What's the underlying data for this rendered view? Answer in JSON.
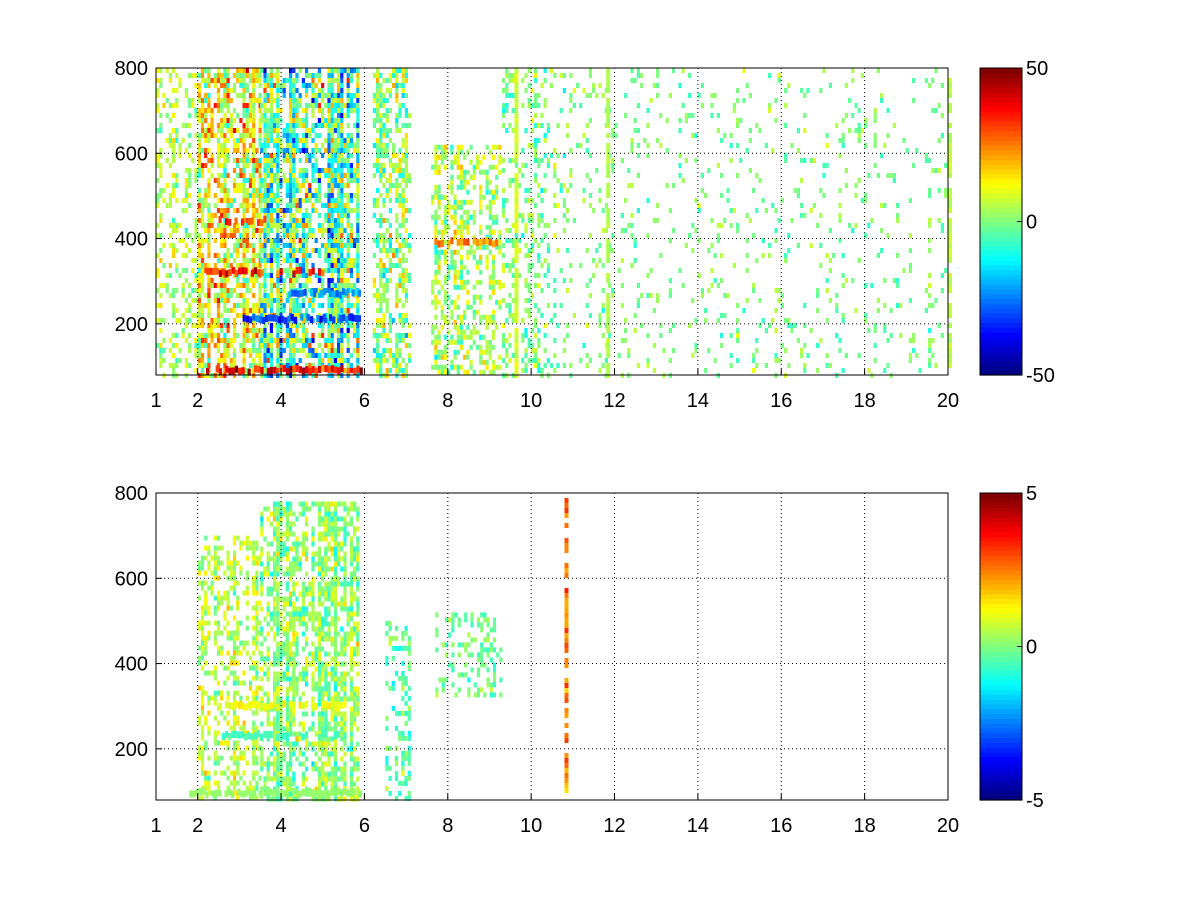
{
  "chart_data": [
    {
      "type": "heatmap",
      "panel": "top",
      "x_ticks": [
        "1",
        "2",
        "4",
        "6",
        "8",
        "10",
        "12",
        "14",
        "16",
        "18",
        "20"
      ],
      "x_tick_values": [
        1,
        2,
        4,
        6,
        8,
        10,
        12,
        14,
        16,
        18,
        20
      ],
      "y_ticks": [
        "200",
        "400",
        "600",
        "800"
      ],
      "y_tick_values": [
        200,
        400,
        600,
        800
      ],
      "xlim": [
        1,
        20
      ],
      "ylim": [
        80,
        800
      ],
      "grid": true,
      "grid_style": "dotted",
      "colormap": "jet",
      "missing_color": "#ffffff",
      "colorbar": {
        "min": -50,
        "max": 50,
        "ticks": [
          "50",
          "0",
          "-50"
        ],
        "tick_values": [
          50,
          0,
          -50
        ]
      },
      "regions": [
        {
          "x": [
            1.0,
            2.0
          ],
          "y": [
            80,
            800
          ],
          "density": 0.35,
          "mean": 5,
          "spread": 8
        },
        {
          "x": [
            2.0,
            3.5
          ],
          "y": [
            80,
            800
          ],
          "density": 0.7,
          "mean": 12,
          "spread": 16
        },
        {
          "x": [
            3.5,
            5.9
          ],
          "y": [
            80,
            800
          ],
          "density": 0.85,
          "mean": -4,
          "spread": 22
        },
        {
          "x": [
            6.2,
            7.1
          ],
          "y": [
            80,
            800
          ],
          "density": 0.55,
          "mean": 2,
          "spread": 12
        },
        {
          "x": [
            7.6,
            9.3
          ],
          "y": [
            80,
            620
          ],
          "density": 0.45,
          "mean": 4,
          "spread": 10
        },
        {
          "x": [
            9.3,
            11.0
          ],
          "y": [
            80,
            800
          ],
          "density": 0.3,
          "mean": 0,
          "spread": 8
        },
        {
          "x": [
            11.0,
            20.0
          ],
          "y": [
            80,
            800
          ],
          "density": 0.1,
          "mean": 0,
          "spread": 6
        }
      ],
      "bands": [
        {
          "x": [
            2.2,
            5.9
          ],
          "y": 90,
          "value": 40
        },
        {
          "x": [
            2.2,
            5.0
          ],
          "y": 320,
          "value": 35
        },
        {
          "x": [
            3.0,
            5.9
          ],
          "y": 210,
          "value": -30
        },
        {
          "x": [
            2.5,
            3.6
          ],
          "y": 440,
          "value": 30
        },
        {
          "x": [
            4.0,
            5.9
          ],
          "y": 270,
          "value": -25
        },
        {
          "x": [
            7.6,
            9.2
          ],
          "y": 390,
          "value": 25
        }
      ],
      "columns": [
        {
          "x": 11.8,
          "value": 5
        },
        {
          "x": 9.6,
          "value": 8
        },
        {
          "x": 20.0,
          "value": 6
        }
      ]
    },
    {
      "type": "heatmap",
      "panel": "bottom",
      "x_ticks": [
        "1",
        "2",
        "4",
        "6",
        "8",
        "10",
        "12",
        "14",
        "16",
        "18",
        "20"
      ],
      "x_tick_values": [
        1,
        2,
        4,
        6,
        8,
        10,
        12,
        14,
        16,
        18,
        20
      ],
      "y_ticks": [
        "200",
        "400",
        "600",
        "800"
      ],
      "y_tick_values": [
        200,
        400,
        600,
        800
      ],
      "xlim": [
        1,
        20
      ],
      "ylim": [
        80,
        800
      ],
      "grid": true,
      "grid_style": "dotted",
      "colormap": "jet",
      "missing_color": "#ffffff",
      "colorbar": {
        "min": -5,
        "max": 5,
        "ticks": [
          "5",
          "0",
          "-5"
        ],
        "tick_values": [
          5,
          0,
          -5
        ]
      },
      "regions": [
        {
          "x": [
            2.0,
            3.5
          ],
          "y": [
            80,
            700
          ],
          "density": 0.5,
          "mean": 0.6,
          "spread": 0.8
        },
        {
          "x": [
            3.5,
            5.9
          ],
          "y": [
            80,
            780
          ],
          "density": 0.7,
          "mean": 0.2,
          "spread": 0.9
        },
        {
          "x": [
            6.5,
            7.1
          ],
          "y": [
            80,
            500
          ],
          "density": 0.35,
          "mean": -0.3,
          "spread": 0.8
        },
        {
          "x": [
            7.7,
            9.3
          ],
          "y": [
            330,
            520
          ],
          "density": 0.35,
          "mean": -0.2,
          "spread": 0.6
        }
      ],
      "bands": [
        {
          "x": [
            1.8,
            5.9
          ],
          "y": 95,
          "value": 0.2
        },
        {
          "x": [
            2.5,
            5.5
          ],
          "y": 230,
          "value": -0.6
        },
        {
          "x": [
            2.5,
            5.5
          ],
          "y": 300,
          "value": 1.2
        }
      ],
      "columns": [
        {
          "x": 10.8,
          "value": 2.5
        }
      ]
    }
  ]
}
